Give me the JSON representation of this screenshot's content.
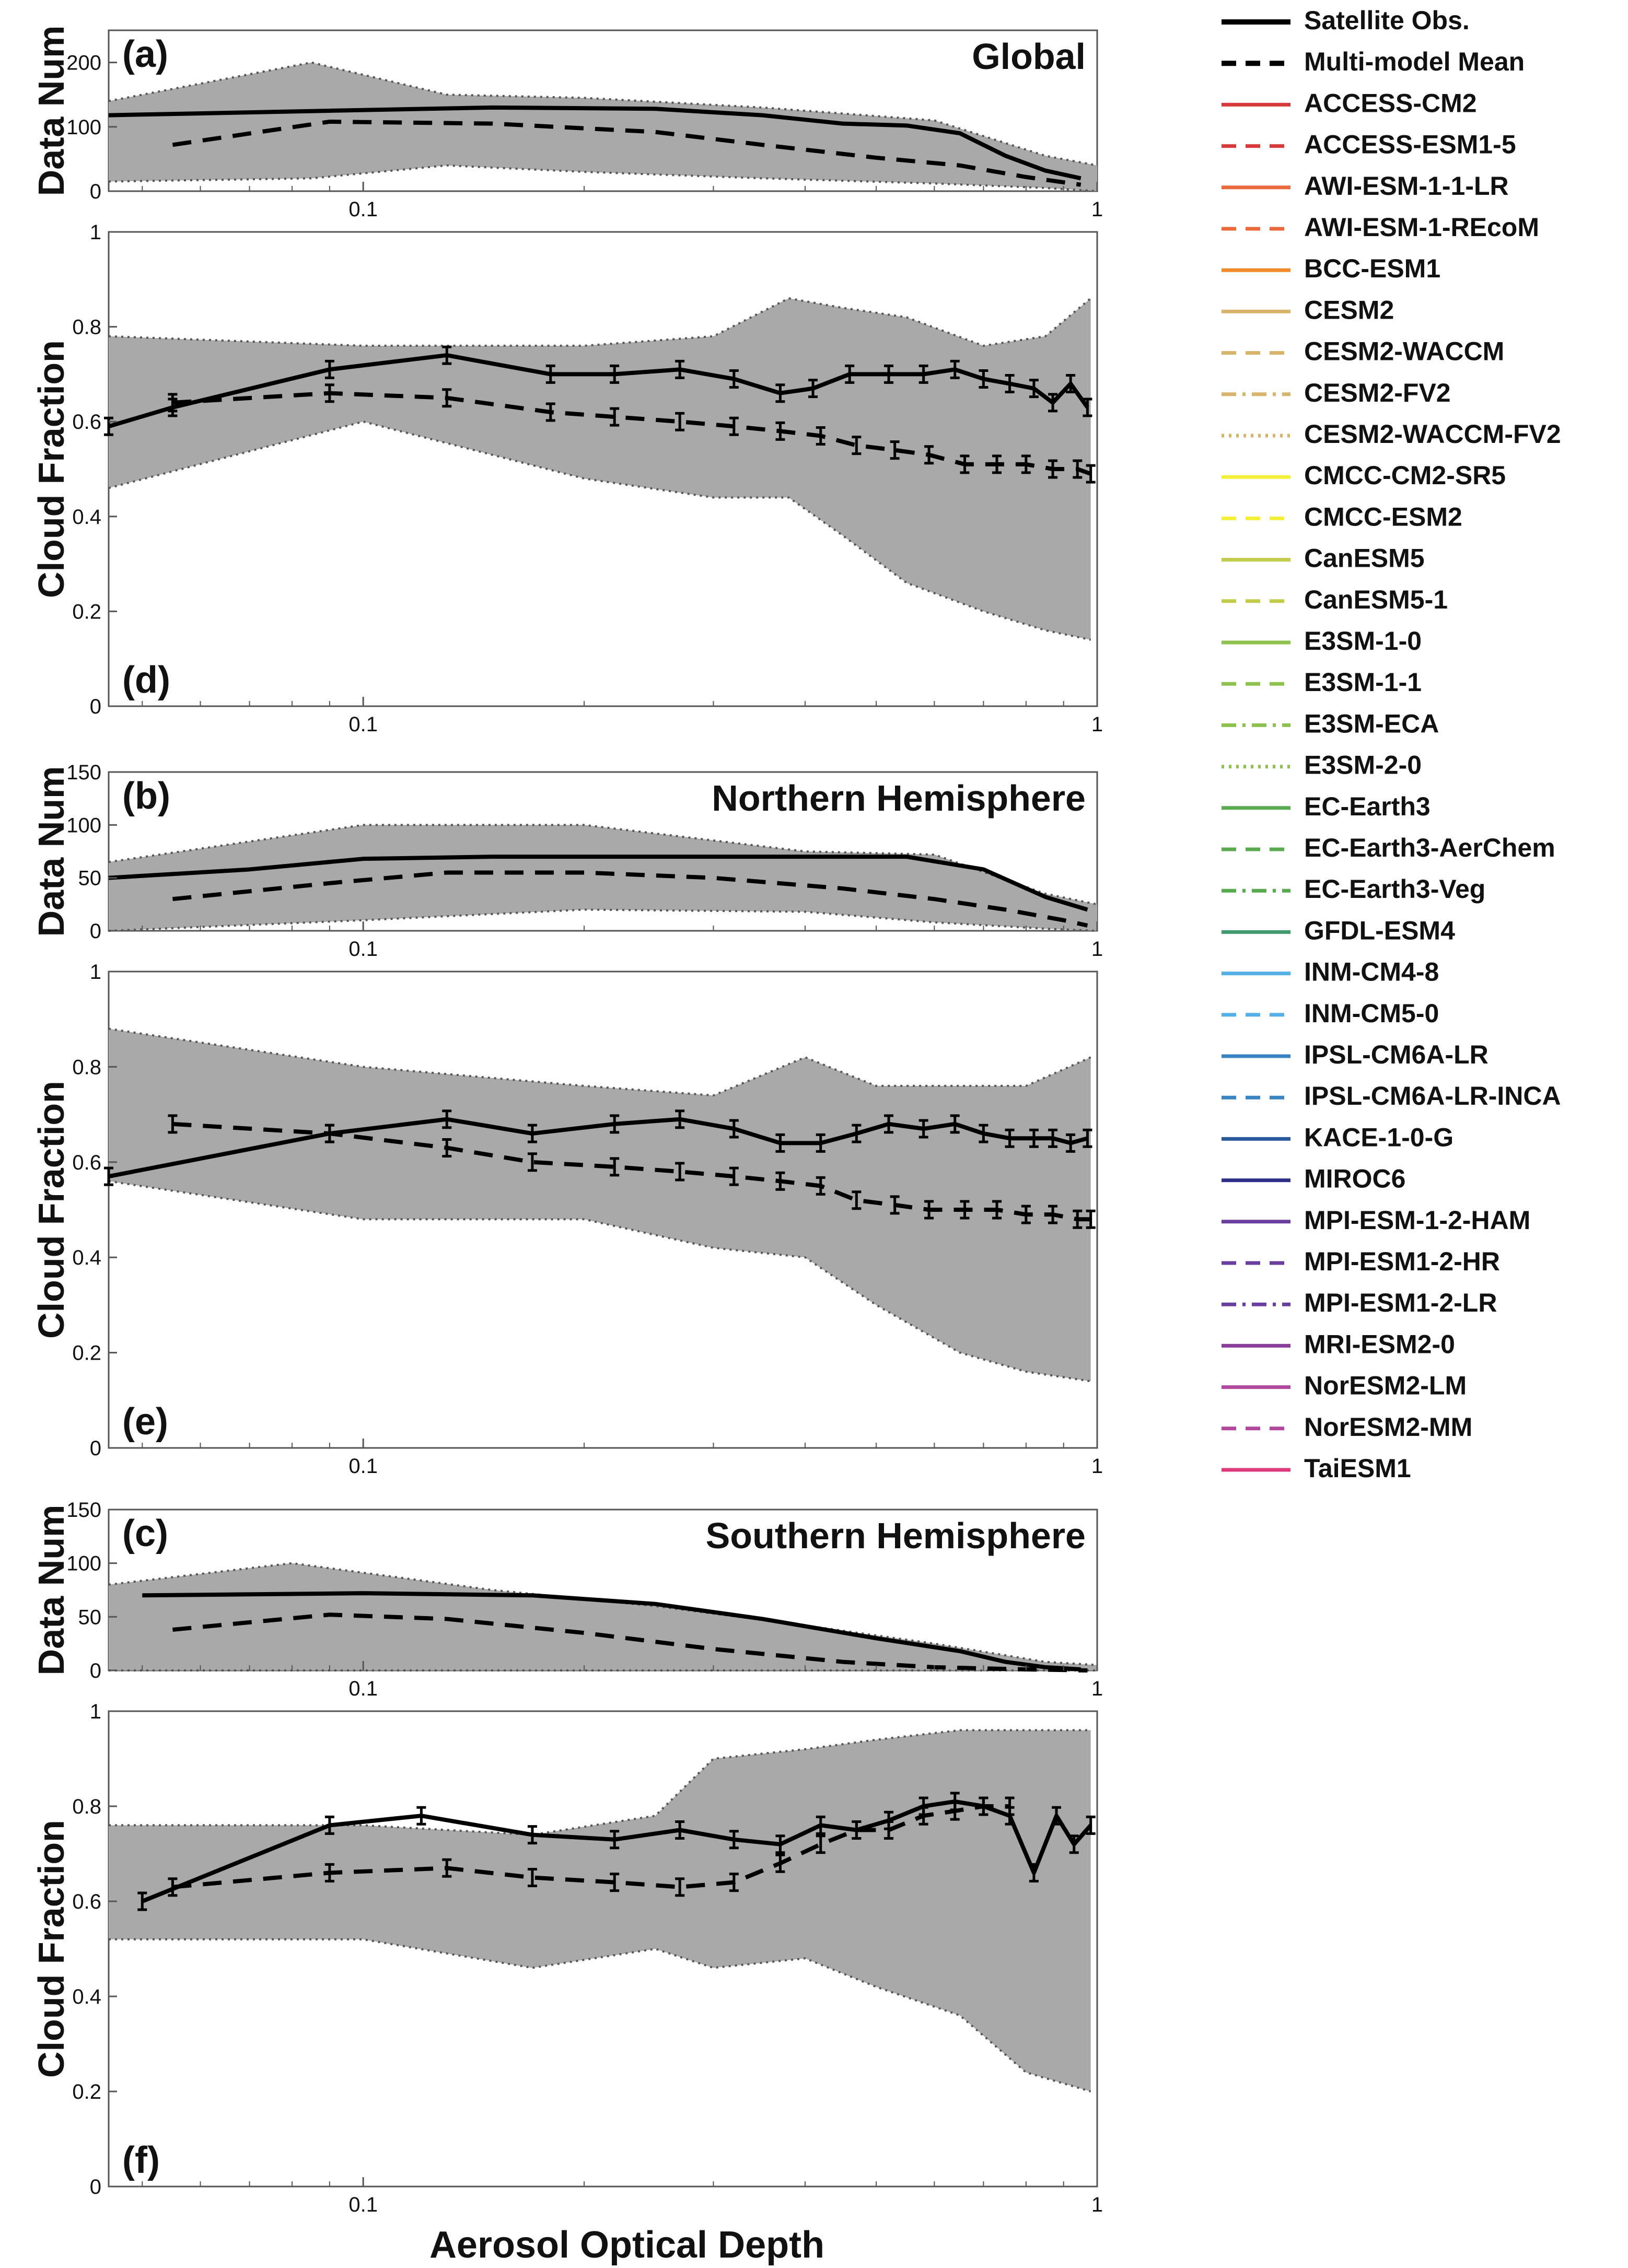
{
  "figure": {
    "xlabel": "Aerosol Optical Depth",
    "x_ticks": [
      0.1,
      1
    ],
    "x_tick_labels": [
      "0.1",
      "1"
    ]
  },
  "legend": {
    "entries": [
      {
        "name": "Satellite Obs.",
        "color": "#000000",
        "style": "solid",
        "bold": true
      },
      {
        "name": "Multi-model Mean",
        "color": "#000000",
        "style": "dashed",
        "bold": true
      },
      {
        "name": "ACCESS-CM2",
        "color": "#d73a3a",
        "style": "solid"
      },
      {
        "name": "ACCESS-ESM1-5",
        "color": "#d73a3a",
        "style": "dashed"
      },
      {
        "name": "AWI-ESM-1-1-LR",
        "color": "#ea6a3c",
        "style": "solid"
      },
      {
        "name": "AWI-ESM-1-REcoM",
        "color": "#ea6a3c",
        "style": "dashed"
      },
      {
        "name": "BCC-ESM1",
        "color": "#f28a2c",
        "style": "solid"
      },
      {
        "name": "CESM2",
        "color": "#d8b46a",
        "style": "solid"
      },
      {
        "name": "CESM2-WACCM",
        "color": "#d8b46a",
        "style": "dashed"
      },
      {
        "name": "CESM2-FV2",
        "color": "#d8b46a",
        "style": "dashdot"
      },
      {
        "name": "CESM2-WACCM-FV2",
        "color": "#d8b46a",
        "style": "dotted"
      },
      {
        "name": "CMCC-CM2-SR5",
        "color": "#f4f03a",
        "style": "solid"
      },
      {
        "name": "CMCC-ESM2",
        "color": "#f4f03a",
        "style": "dashed"
      },
      {
        "name": "CanESM5",
        "color": "#c2cc4a",
        "style": "solid"
      },
      {
        "name": "CanESM5-1",
        "color": "#c2cc4a",
        "style": "dashed"
      },
      {
        "name": "E3SM-1-0",
        "color": "#8ec24e",
        "style": "solid"
      },
      {
        "name": "E3SM-1-1",
        "color": "#8ec24e",
        "style": "dashed"
      },
      {
        "name": "E3SM-ECA",
        "color": "#8ec24e",
        "style": "dashdot"
      },
      {
        "name": "E3SM-2-0",
        "color": "#8ec24e",
        "style": "dotted"
      },
      {
        "name": "EC-Earth3",
        "color": "#5aaa50",
        "style": "solid"
      },
      {
        "name": "EC-Earth3-AerChem",
        "color": "#5aaa50",
        "style": "dashed"
      },
      {
        "name": "EC-Earth3-Veg",
        "color": "#5aaa50",
        "style": "dashdot"
      },
      {
        "name": "GFDL-ESM4",
        "color": "#3f9a6e",
        "style": "solid"
      },
      {
        "name": "INM-CM4-8",
        "color": "#55b0e8",
        "style": "solid"
      },
      {
        "name": "INM-CM5-0",
        "color": "#55b0e8",
        "style": "dashed"
      },
      {
        "name": "IPSL-CM6A-LR",
        "color": "#3b84c4",
        "style": "solid"
      },
      {
        "name": "IPSL-CM6A-LR-INCA",
        "color": "#3b84c4",
        "style": "dashed"
      },
      {
        "name": "KACE-1-0-G",
        "color": "#2a5a9a",
        "style": "solid"
      },
      {
        "name": "MIROC6",
        "color": "#2e2f86",
        "style": "solid"
      },
      {
        "name": "MPI-ESM-1-2-HAM",
        "color": "#6a3e9e",
        "style": "solid"
      },
      {
        "name": "MPI-ESM1-2-HR",
        "color": "#6a3e9e",
        "style": "dashed"
      },
      {
        "name": "MPI-ESM1-2-LR",
        "color": "#6a3e9e",
        "style": "dashdot"
      },
      {
        "name": "MRI-ESM2-0",
        "color": "#8a3c9c",
        "style": "solid"
      },
      {
        "name": "NorESM2-LM",
        "color": "#b2479e",
        "style": "solid"
      },
      {
        "name": "NorESM2-MM",
        "color": "#b2479e",
        "style": "dashed"
      },
      {
        "name": "TaiESM1",
        "color": "#dc3a7a",
        "style": "solid"
      }
    ]
  },
  "chart_data": [
    {
      "id": "a",
      "type": "line",
      "panel_label": "(a)",
      "region": "Global",
      "xlabel": "",
      "ylabel": "Data Num",
      "xscale": "log",
      "xlim": [
        0.045,
        1.0
      ],
      "ylim": [
        0,
        250
      ],
      "yticks": [
        0,
        100,
        200
      ],
      "band": {
        "x": [
          0.045,
          0.085,
          0.13,
          0.2,
          0.35,
          0.6,
          0.85,
          1.0
        ],
        "upper": [
          140,
          200,
          150,
          145,
          130,
          110,
          55,
          40
        ],
        "lower": [
          15,
          20,
          40,
          30,
          20,
          12,
          5,
          0
        ]
      },
      "series": [
        {
          "name": "Satellite Obs.",
          "x": [
            0.045,
            0.09,
            0.15,
            0.25,
            0.35,
            0.45,
            0.55,
            0.65,
            0.75,
            0.85,
            0.95
          ],
          "y": [
            118,
            125,
            130,
            128,
            118,
            105,
            102,
            90,
            55,
            32,
            20
          ]
        },
        {
          "name": "Multi-model Mean",
          "x": [
            0.055,
            0.09,
            0.15,
            0.25,
            0.35,
            0.5,
            0.65,
            0.8,
            0.95
          ],
          "y": [
            72,
            108,
            105,
            92,
            72,
            52,
            40,
            22,
            10
          ]
        }
      ]
    },
    {
      "id": "d",
      "type": "line",
      "panel_label": "(d)",
      "xlabel": "",
      "ylabel": "Cloud Fraction",
      "xscale": "log",
      "xlim": [
        0.045,
        1.0
      ],
      "ylim": [
        0,
        1
      ],
      "yticks": [
        0,
        0.2,
        0.4,
        0.6,
        0.8,
        1
      ],
      "band": {
        "x": [
          0.045,
          0.1,
          0.2,
          0.3,
          0.38,
          0.45,
          0.55,
          0.7,
          0.85,
          0.98
        ],
        "upper": [
          0.78,
          0.76,
          0.76,
          0.78,
          0.86,
          0.84,
          0.82,
          0.76,
          0.78,
          0.86
        ],
        "lower": [
          0.46,
          0.6,
          0.48,
          0.44,
          0.44,
          0.36,
          0.26,
          0.2,
          0.16,
          0.14
        ]
      },
      "series": [
        {
          "name": "Satellite Obs.",
          "x": [
            0.045,
            0.055,
            0.09,
            0.13,
            0.18,
            0.22,
            0.27,
            0.32,
            0.37,
            0.41,
            0.46,
            0.52,
            0.58,
            0.64,
            0.7,
            0.76,
            0.82,
            0.87,
            0.92,
            0.97
          ],
          "y": [
            0.59,
            0.63,
            0.71,
            0.74,
            0.7,
            0.7,
            0.71,
            0.69,
            0.66,
            0.67,
            0.7,
            0.7,
            0.7,
            0.71,
            0.69,
            0.68,
            0.67,
            0.64,
            0.68,
            0.63
          ]
        },
        {
          "name": "Multi-model Mean",
          "x": [
            0.055,
            0.09,
            0.13,
            0.18,
            0.22,
            0.27,
            0.32,
            0.37,
            0.42,
            0.47,
            0.53,
            0.59,
            0.66,
            0.73,
            0.8,
            0.87,
            0.94,
            0.98
          ],
          "y": [
            0.64,
            0.66,
            0.65,
            0.62,
            0.61,
            0.6,
            0.59,
            0.58,
            0.57,
            0.55,
            0.54,
            0.53,
            0.51,
            0.51,
            0.51,
            0.5,
            0.5,
            0.49
          ]
        }
      ]
    },
    {
      "id": "b",
      "type": "line",
      "panel_label": "(b)",
      "region": "Northern Hemisphere",
      "xlabel": "",
      "ylabel": "Data Num",
      "xscale": "log",
      "xlim": [
        0.045,
        1.0
      ],
      "ylim": [
        0,
        150
      ],
      "yticks": [
        0,
        50,
        100,
        150
      ],
      "band": {
        "x": [
          0.045,
          0.1,
          0.2,
          0.4,
          0.6,
          0.85,
          1.0
        ],
        "upper": [
          65,
          100,
          100,
          75,
          72,
          35,
          25
        ],
        "lower": [
          0,
          10,
          20,
          18,
          8,
          2,
          0
        ]
      },
      "series": [
        {
          "name": "Satellite Obs.",
          "x": [
            0.045,
            0.07,
            0.1,
            0.15,
            0.25,
            0.4,
            0.55,
            0.7,
            0.85,
            0.97
          ],
          "y": [
            50,
            58,
            68,
            70,
            70,
            70,
            70,
            58,
            32,
            20
          ]
        },
        {
          "name": "Multi-model Mean",
          "x": [
            0.055,
            0.09,
            0.13,
            0.2,
            0.3,
            0.45,
            0.6,
            0.75,
            0.9,
            0.97
          ],
          "y": [
            30,
            45,
            55,
            55,
            50,
            40,
            30,
            20,
            10,
            5
          ]
        }
      ]
    },
    {
      "id": "e",
      "type": "line",
      "panel_label": "(e)",
      "xlabel": "",
      "ylabel": "Cloud Fraction",
      "xscale": "log",
      "xlim": [
        0.045,
        1.0
      ],
      "ylim": [
        0,
        1
      ],
      "yticks": [
        0,
        0.2,
        0.4,
        0.6,
        0.8,
        1
      ],
      "band": {
        "x": [
          0.045,
          0.1,
          0.2,
          0.3,
          0.4,
          0.5,
          0.65,
          0.8,
          0.98
        ],
        "upper": [
          0.88,
          0.8,
          0.76,
          0.74,
          0.82,
          0.76,
          0.76,
          0.76,
          0.82
        ],
        "lower": [
          0.56,
          0.48,
          0.48,
          0.42,
          0.4,
          0.3,
          0.2,
          0.16,
          0.14
        ]
      },
      "series": [
        {
          "name": "Satellite Obs.",
          "x": [
            0.045,
            0.09,
            0.13,
            0.17,
            0.22,
            0.27,
            0.32,
            0.37,
            0.42,
            0.47,
            0.52,
            0.58,
            0.64,
            0.7,
            0.76,
            0.82,
            0.87,
            0.92,
            0.97
          ],
          "y": [
            0.57,
            0.66,
            0.69,
            0.66,
            0.68,
            0.69,
            0.67,
            0.64,
            0.64,
            0.66,
            0.68,
            0.67,
            0.68,
            0.66,
            0.65,
            0.65,
            0.65,
            0.64,
            0.65
          ]
        },
        {
          "name": "Multi-model Mean",
          "x": [
            0.055,
            0.09,
            0.13,
            0.17,
            0.22,
            0.27,
            0.32,
            0.37,
            0.42,
            0.47,
            0.53,
            0.59,
            0.66,
            0.73,
            0.8,
            0.87,
            0.94,
            0.98
          ],
          "y": [
            0.68,
            0.66,
            0.63,
            0.6,
            0.59,
            0.58,
            0.57,
            0.56,
            0.55,
            0.52,
            0.51,
            0.5,
            0.5,
            0.5,
            0.49,
            0.49,
            0.48,
            0.48
          ]
        }
      ]
    },
    {
      "id": "c",
      "type": "line",
      "panel_label": "(c)",
      "region": "Southern Hemisphere",
      "xlabel": "",
      "ylabel": "Data Num",
      "xscale": "log",
      "xlim": [
        0.045,
        1.0
      ],
      "ylim": [
        0,
        150
      ],
      "yticks": [
        0,
        50,
        100,
        150
      ],
      "band": {
        "x": [
          0.045,
          0.08,
          0.15,
          0.25,
          0.4,
          0.6,
          0.85,
          1.0
        ],
        "upper": [
          80,
          100,
          75,
          60,
          42,
          25,
          8,
          5
        ],
        "lower": [
          0,
          0,
          0,
          0,
          0,
          0,
          0,
          0
        ]
      },
      "series": [
        {
          "name": "Satellite Obs.",
          "x": [
            0.05,
            0.1,
            0.17,
            0.25,
            0.35,
            0.5,
            0.65,
            0.75,
            0.85,
            0.95
          ],
          "y": [
            70,
            72,
            70,
            62,
            48,
            30,
            18,
            8,
            3,
            1
          ]
        },
        {
          "name": "Multi-model Mean",
          "x": [
            0.055,
            0.09,
            0.13,
            0.2,
            0.3,
            0.45,
            0.6,
            0.8,
            0.97
          ],
          "y": [
            38,
            52,
            48,
            35,
            20,
            8,
            3,
            1,
            0
          ]
        }
      ]
    },
    {
      "id": "f",
      "type": "line",
      "panel_label": "(f)",
      "xlabel": "Aerosol Optical Depth",
      "ylabel": "Cloud Fraction",
      "xscale": "log",
      "xlim": [
        0.045,
        1.0
      ],
      "ylim": [
        0,
        1
      ],
      "yticks": [
        0,
        0.2,
        0.4,
        0.6,
        0.8,
        1
      ],
      "band": {
        "x": [
          0.045,
          0.1,
          0.17,
          0.25,
          0.3,
          0.4,
          0.5,
          0.65,
          0.8,
          0.98
        ],
        "upper": [
          0.76,
          0.76,
          0.74,
          0.78,
          0.9,
          0.92,
          0.94,
          0.96,
          0.96,
          0.96
        ],
        "lower": [
          0.52,
          0.52,
          0.46,
          0.5,
          0.46,
          0.48,
          0.42,
          0.36,
          0.24,
          0.2
        ]
      },
      "series": [
        {
          "name": "Satellite Obs.",
          "x": [
            0.05,
            0.09,
            0.12,
            0.17,
            0.22,
            0.27,
            0.32,
            0.37,
            0.42,
            0.47,
            0.52,
            0.58,
            0.64,
            0.7,
            0.76,
            0.82,
            0.88,
            0.93,
            0.98
          ],
          "y": [
            0.6,
            0.76,
            0.78,
            0.74,
            0.73,
            0.75,
            0.73,
            0.72,
            0.76,
            0.75,
            0.77,
            0.8,
            0.81,
            0.8,
            0.78,
            0.66,
            0.78,
            0.72,
            0.76
          ]
        },
        {
          "name": "Multi-model Mean",
          "x": [
            0.055,
            0.09,
            0.13,
            0.17,
            0.22,
            0.27,
            0.32,
            0.37,
            0.42,
            0.47,
            0.52,
            0.58,
            0.64,
            0.7,
            0.76
          ],
          "y": [
            0.63,
            0.66,
            0.67,
            0.65,
            0.64,
            0.63,
            0.64,
            0.68,
            0.72,
            0.75,
            0.75,
            0.78,
            0.79,
            0.8,
            0.8
          ]
        }
      ]
    }
  ]
}
